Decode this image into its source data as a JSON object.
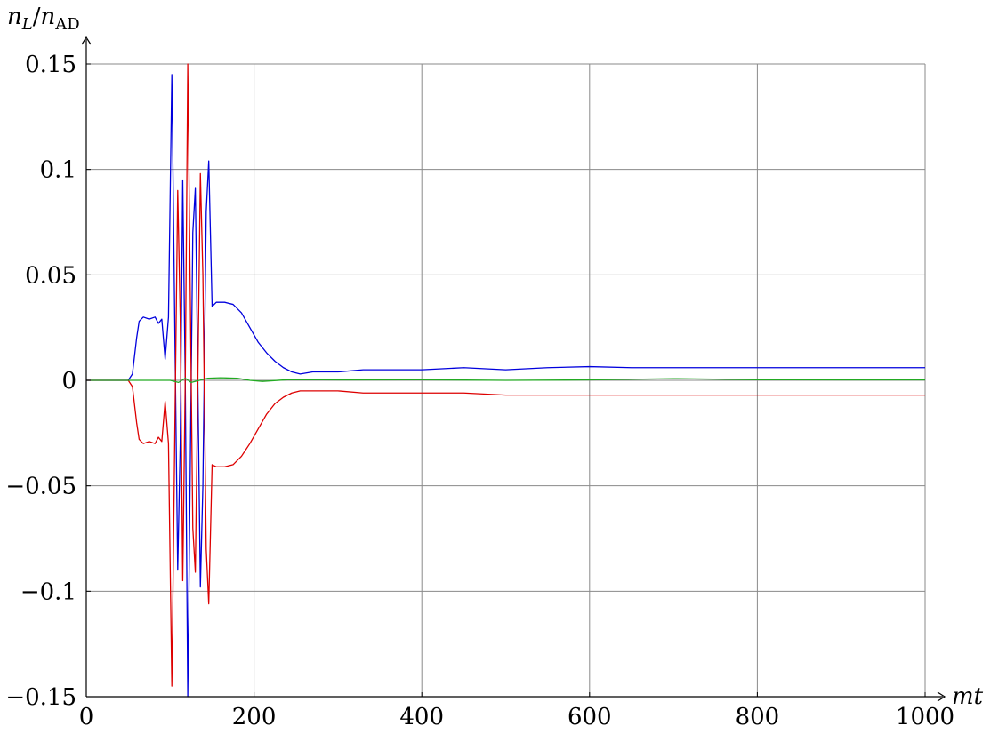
{
  "chart_data": {
    "type": "line",
    "title": "",
    "xlabel": "mt",
    "ylabel": "n_L/n_AD",
    "ylabel_parts": {
      "n": "n",
      "sub_L": "L",
      "slash": "/",
      "sub_AD": "AD"
    },
    "xlim": [
      0,
      1000
    ],
    "ylim": [
      -0.15,
      0.15
    ],
    "grid": true,
    "legend": "none",
    "x_ticks": [
      {
        "value": 0,
        "label": "0"
      },
      {
        "value": 200,
        "label": "200"
      },
      {
        "value": 400,
        "label": "400"
      },
      {
        "value": 600,
        "label": "600"
      },
      {
        "value": 800,
        "label": "800"
      },
      {
        "value": 1000,
        "label": "1000"
      }
    ],
    "y_ticks": [
      {
        "value": 0.15,
        "label": "0.15"
      },
      {
        "value": 0.1,
        "label": "0.1"
      },
      {
        "value": 0.05,
        "label": "0.05"
      },
      {
        "value": 0,
        "label": "0"
      },
      {
        "value": -0.05,
        "label": "−0.05"
      },
      {
        "value": -0.1,
        "label": "−0.1"
      },
      {
        "value": -0.15,
        "label": "−0.15"
      }
    ],
    "series": [
      {
        "color": "#0000dd",
        "points": [
          [
            0,
            0
          ],
          [
            50,
            0
          ],
          [
            55,
            0.003
          ],
          [
            60,
            0.02
          ],
          [
            63,
            0.028
          ],
          [
            68,
            0.03
          ],
          [
            75,
            0.029
          ],
          [
            82,
            0.03
          ],
          [
            86,
            0.027
          ],
          [
            90,
            0.029
          ],
          [
            94,
            0.01
          ],
          [
            98,
            0.03
          ],
          [
            102,
            0.145
          ],
          [
            106,
            0.01
          ],
          [
            109,
            -0.09
          ],
          [
            112,
            -0.03
          ],
          [
            115,
            0.095
          ],
          [
            118,
            0.0
          ],
          [
            121,
            -0.15
          ],
          [
            124,
            -0.04
          ],
          [
            127,
            0.07
          ],
          [
            130,
            0.091
          ],
          [
            133,
            0.0
          ],
          [
            136,
            -0.098
          ],
          [
            139,
            -0.05
          ],
          [
            143,
            0.08
          ],
          [
            146,
            0.104
          ],
          [
            150,
            0.035
          ],
          [
            155,
            0.037
          ],
          [
            165,
            0.037
          ],
          [
            175,
            0.036
          ],
          [
            185,
            0.032
          ],
          [
            195,
            0.025
          ],
          [
            205,
            0.018
          ],
          [
            215,
            0.013
          ],
          [
            225,
            0.009
          ],
          [
            235,
            0.006
          ],
          [
            245,
            0.004
          ],
          [
            255,
            0.003
          ],
          [
            270,
            0.004
          ],
          [
            300,
            0.004
          ],
          [
            330,
            0.005
          ],
          [
            360,
            0.005
          ],
          [
            400,
            0.005
          ],
          [
            450,
            0.006
          ],
          [
            500,
            0.005
          ],
          [
            550,
            0.006
          ],
          [
            600,
            0.0065
          ],
          [
            650,
            0.006
          ],
          [
            700,
            0.006
          ],
          [
            750,
            0.006
          ],
          [
            800,
            0.006
          ],
          [
            850,
            0.006
          ],
          [
            900,
            0.006
          ],
          [
            950,
            0.006
          ],
          [
            1000,
            0.006
          ]
        ]
      },
      {
        "color": "#dd0000",
        "points": [
          [
            0,
            0
          ],
          [
            50,
            0
          ],
          [
            55,
            -0.003
          ],
          [
            60,
            -0.02
          ],
          [
            63,
            -0.028
          ],
          [
            68,
            -0.03
          ],
          [
            75,
            -0.029
          ],
          [
            82,
            -0.03
          ],
          [
            86,
            -0.027
          ],
          [
            90,
            -0.029
          ],
          [
            94,
            -0.01
          ],
          [
            98,
            -0.03
          ],
          [
            102,
            -0.145
          ],
          [
            106,
            -0.01
          ],
          [
            109,
            0.09
          ],
          [
            112,
            0.03
          ],
          [
            115,
            -0.095
          ],
          [
            118,
            0.0
          ],
          [
            121,
            0.15
          ],
          [
            124,
            0.04
          ],
          [
            127,
            -0.07
          ],
          [
            130,
            -0.091
          ],
          [
            133,
            0.0
          ],
          [
            136,
            0.098
          ],
          [
            139,
            0.05
          ],
          [
            143,
            -0.08
          ],
          [
            146,
            -0.106
          ],
          [
            150,
            -0.04
          ],
          [
            155,
            -0.041
          ],
          [
            165,
            -0.041
          ],
          [
            175,
            -0.04
          ],
          [
            185,
            -0.036
          ],
          [
            195,
            -0.03
          ],
          [
            205,
            -0.023
          ],
          [
            215,
            -0.016
          ],
          [
            225,
            -0.011
          ],
          [
            235,
            -0.008
          ],
          [
            245,
            -0.006
          ],
          [
            255,
            -0.005
          ],
          [
            270,
            -0.005
          ],
          [
            300,
            -0.005
          ],
          [
            330,
            -0.006
          ],
          [
            360,
            -0.006
          ],
          [
            400,
            -0.006
          ],
          [
            450,
            -0.006
          ],
          [
            500,
            -0.007
          ],
          [
            550,
            -0.007
          ],
          [
            600,
            -0.007
          ],
          [
            650,
            -0.007
          ],
          [
            700,
            -0.007
          ],
          [
            750,
            -0.007
          ],
          [
            800,
            -0.007
          ],
          [
            850,
            -0.007
          ],
          [
            900,
            -0.007
          ],
          [
            950,
            -0.007
          ],
          [
            1000,
            -0.007
          ]
        ]
      },
      {
        "color": "#22aa22",
        "points": [
          [
            0,
            0
          ],
          [
            100,
            0
          ],
          [
            110,
            -0.001
          ],
          [
            118,
            0.001
          ],
          [
            125,
            -0.001
          ],
          [
            135,
            0.0
          ],
          [
            145,
            0.001
          ],
          [
            160,
            0.0012
          ],
          [
            180,
            0.001
          ],
          [
            195,
            0.0
          ],
          [
            210,
            -0.0005
          ],
          [
            240,
            0.0003
          ],
          [
            280,
            0.0003
          ],
          [
            320,
            0.0002
          ],
          [
            400,
            0.0003
          ],
          [
            500,
            0.0
          ],
          [
            600,
            0.0002
          ],
          [
            700,
            0.0008
          ],
          [
            800,
            0.0003
          ],
          [
            900,
            0.0002
          ],
          [
            1000,
            0.0002
          ]
        ]
      }
    ]
  }
}
